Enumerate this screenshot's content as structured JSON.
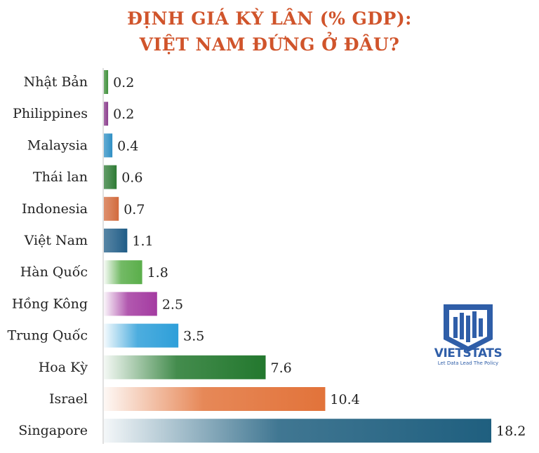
{
  "title_line1": "ĐỊNH GIÁ KỲ LÂN (% GDP):",
  "title_line2": "VIỆT NAM ĐỨNG Ở ĐÂU?",
  "logo": {
    "name": "VIETSTATS",
    "tagline": "Let Data Lead The Policy"
  },
  "chart_data": {
    "type": "bar",
    "orientation": "horizontal",
    "title": "ĐỊNH GIÁ KỲ LÂN (% GDP): VIỆT NAM ĐỨNG Ở ĐÂU?",
    "categories": [
      "Nhật Bản",
      "Philippines",
      "Malaysia",
      "Thái lan",
      "Indonesia",
      "Việt Nam",
      "Hàn Quốc",
      "Hồng Kông",
      "Trung Quốc",
      "Hoa Kỳ",
      "Israel",
      "Singapore"
    ],
    "values": [
      0.2,
      0.2,
      0.4,
      0.6,
      0.7,
      1.1,
      1.8,
      2.5,
      3.5,
      7.6,
      10.4,
      18.2
    ],
    "value_labels": [
      "0.2",
      "0.2",
      "0.4",
      "0.6",
      "0.7",
      "1.1",
      "1.8",
      "2.5",
      "3.5",
      "7.6",
      "10.4",
      "18.2"
    ],
    "colors": [
      "#3f8f3a",
      "#8a3c8c",
      "#2e8fc4",
      "#2d7a34",
      "#d26a3c",
      "#1f5c86",
      "#5aae4a",
      "#a43ba1",
      "#2e9fd9",
      "#23782e",
      "#e2733a",
      "#1f5f7f"
    ],
    "xlim": [
      0,
      18.2
    ],
    "grid": false,
    "legend": "none"
  }
}
